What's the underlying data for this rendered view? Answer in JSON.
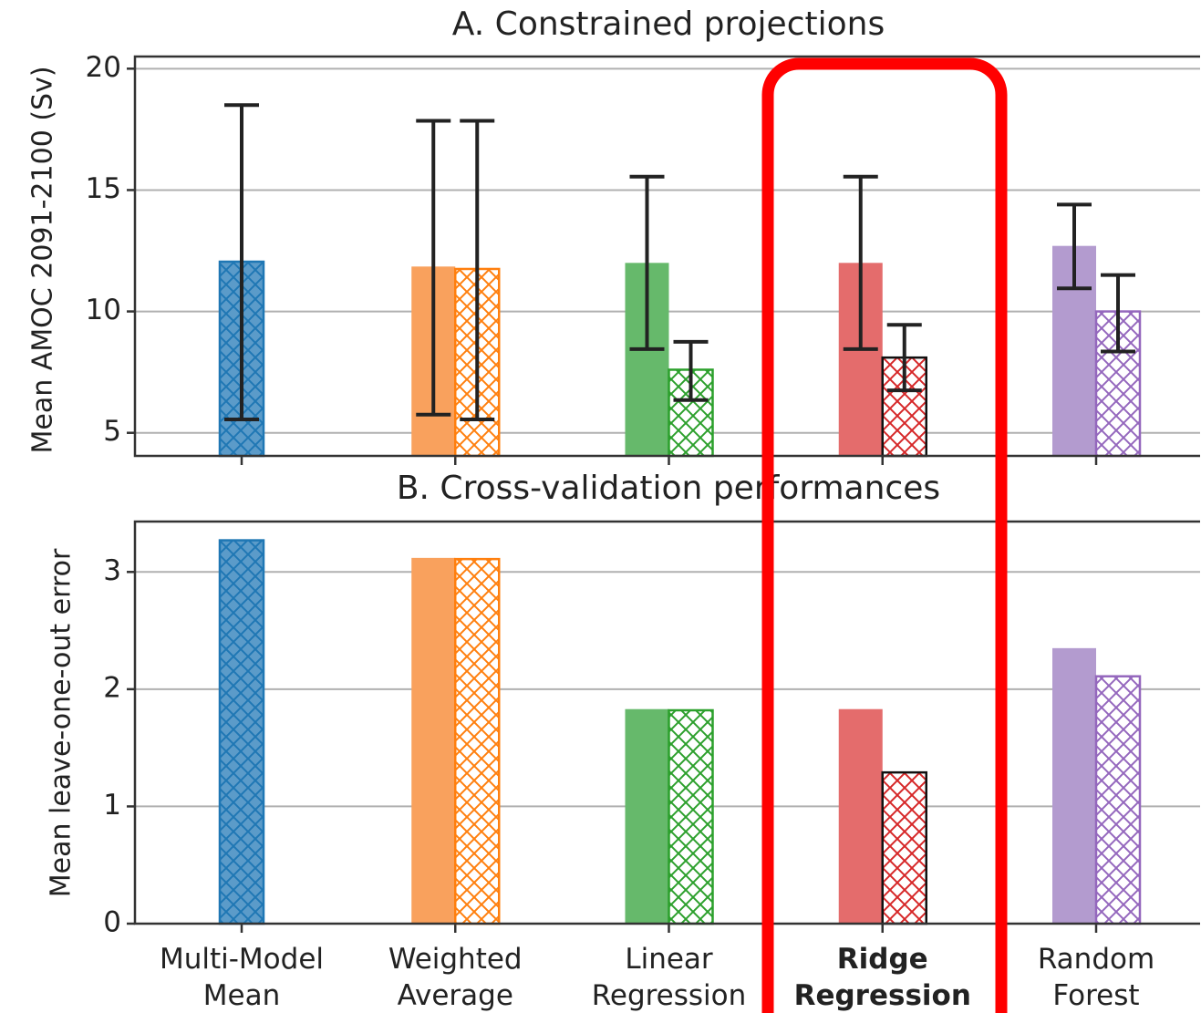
{
  "chart_data": [
    {
      "type": "bar",
      "title": "A. Constrained projections",
      "ylabel": "Mean AMOC 2091-2100 (Sv)",
      "ylim": [
        4.05,
        20.5
      ],
      "yticks": [
        5,
        10,
        15,
        20
      ],
      "grid": true,
      "fill_colors": [
        "#5b9bc9",
        "#f9a15d",
        "#66b96b",
        "#e46c6c",
        "#b39bcf"
      ],
      "hatch_colors": [
        "#1f77b4",
        "#ff7f0e",
        "#2ca02c",
        "#d62728",
        "#9467bd"
      ],
      "hatch_edge_colors": [
        "#1f77b4",
        "#ff7f0e",
        "#2ca02c",
        "#111111",
        "#9467bd"
      ],
      "series": [
        {
          "hatch": false,
          "values": [
            null,
            11.85,
            12.0,
            12.0,
            12.7
          ],
          "lower": [
            null,
            5.75,
            8.45,
            8.45,
            10.95
          ],
          "upper": [
            null,
            17.85,
            15.55,
            15.55,
            14.4
          ]
        },
        {
          "hatch": true,
          "values": [
            12.05,
            11.75,
            7.6,
            8.1,
            10.0
          ],
          "lower": [
            5.55,
            5.55,
            6.35,
            6.75,
            8.35
          ],
          "upper": [
            18.5,
            17.85,
            8.75,
            9.45,
            11.5
          ]
        }
      ]
    },
    {
      "type": "bar",
      "title": "B. Cross-validation performances",
      "ylabel": "Mean leave-one-out error",
      "categories": [
        "Multi-Model Mean",
        "Weighted Average",
        "Linear Regression",
        "Ridge Regression",
        "Random Forest"
      ],
      "highlight_index": 3,
      "ylim": [
        0,
        3.43
      ],
      "yticks": [
        0,
        1,
        2,
        3
      ],
      "grid": true,
      "fill_colors": [
        "#5b9bc9",
        "#f9a15d",
        "#66b96b",
        "#e46c6c",
        "#b39bcf"
      ],
      "hatch_colors": [
        "#1f77b4",
        "#ff7f0e",
        "#2ca02c",
        "#d62728",
        "#9467bd"
      ],
      "hatch_edge_colors": [
        "#1f77b4",
        "#ff7f0e",
        "#2ca02c",
        "#111111",
        "#9467bd"
      ],
      "series": [
        {
          "hatch": false,
          "values": [
            null,
            3.12,
            1.83,
            1.83,
            2.35
          ]
        },
        {
          "hatch": true,
          "values": [
            3.27,
            3.11,
            1.82,
            1.29,
            2.11
          ]
        }
      ]
    }
  ]
}
